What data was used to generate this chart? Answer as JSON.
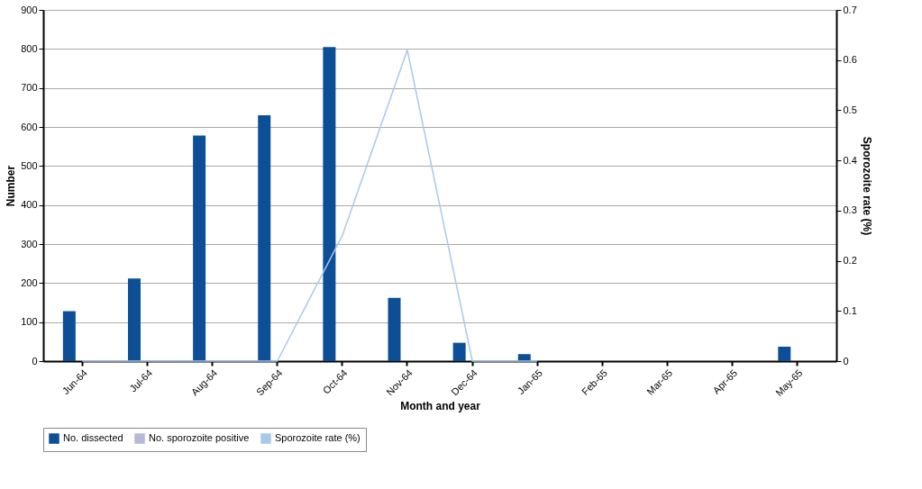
{
  "chart_data": {
    "type": "bar",
    "xlabel": "Month and year",
    "ylabel": "Number",
    "y2label": "Sporozoite rate (%)",
    "categories": [
      "Jun-64",
      "Jul-64",
      "Aug-64",
      "Sep-64",
      "Oct-64",
      "Nov-64",
      "Dec-64",
      "Jan-65",
      "Feb-65",
      "Mar-65",
      "Apr-65",
      "May-65"
    ],
    "series": [
      {
        "name": "No. dissected",
        "color": "#0d4f96",
        "values": [
          128,
          212,
          578,
          630,
          805,
          162,
          47,
          18,
          0,
          0,
          0,
          37
        ]
      },
      {
        "name": "No. sporozoite positive",
        "color": "#b8b8d8",
        "values": [
          0,
          0,
          0,
          0,
          null,
          null,
          0,
          0,
          0,
          0,
          0,
          0
        ]
      },
      {
        "name": "Sporozoite rate (%)",
        "type": "line",
        "axis": "y2",
        "color": "#a9c8ea",
        "values": [
          0,
          0,
          0,
          0,
          0.25,
          0.62,
          0,
          0,
          null,
          null,
          null,
          null
        ]
      }
    ],
    "ylim": [
      0,
      900
    ],
    "yticks": [
      0,
      100,
      200,
      300,
      400,
      500,
      600,
      700,
      800,
      900
    ],
    "y2lim": [
      0,
      0.7
    ],
    "y2ticks": [
      {
        "value": 0,
        "label": "0"
      },
      0.1,
      0.2,
      0.3,
      0.4,
      0.5,
      0.6,
      0.7
    ],
    "grid": "y",
    "legend": "bottom"
  }
}
